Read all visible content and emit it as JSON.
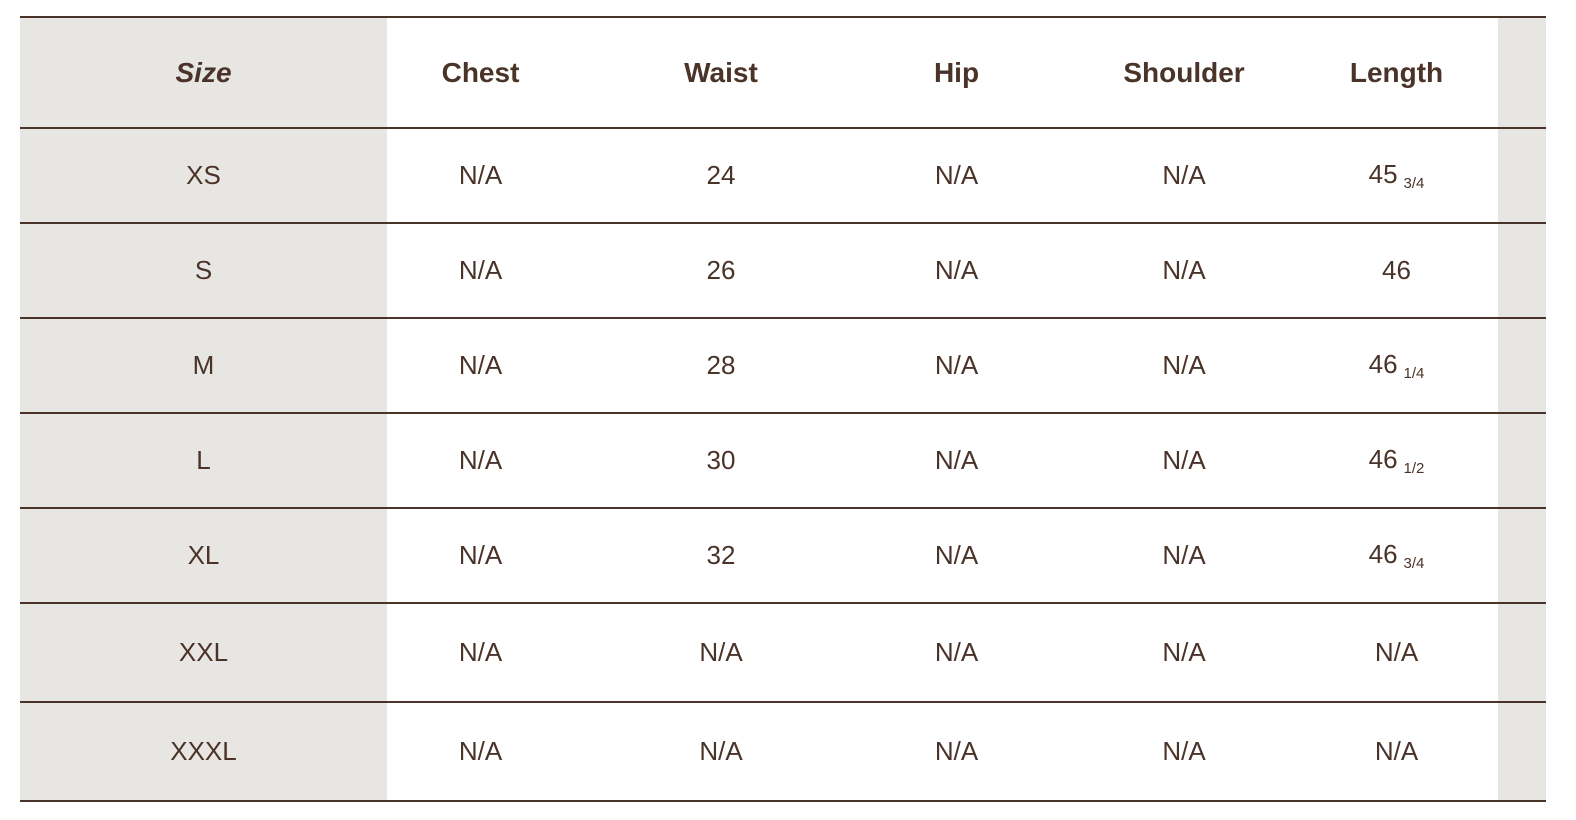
{
  "table": {
    "headers": [
      "Size",
      "Chest",
      "Waist",
      "Hip",
      "Shoulder",
      "Length"
    ],
    "rows": [
      {
        "size": "XS",
        "chest": "N/A",
        "waist": "24",
        "hip": "N/A",
        "shoulder": "N/A",
        "length": "45",
        "length_frac": "3/4"
      },
      {
        "size": "S",
        "chest": "N/A",
        "waist": "26",
        "hip": "N/A",
        "shoulder": "N/A",
        "length": "46",
        "length_frac": ""
      },
      {
        "size": "M",
        "chest": "N/A",
        "waist": "28",
        "hip": "N/A",
        "shoulder": "N/A",
        "length": "46",
        "length_frac": "1/4"
      },
      {
        "size": "L",
        "chest": "N/A",
        "waist": "30",
        "hip": "N/A",
        "shoulder": "N/A",
        "length": "46",
        "length_frac": "1/2"
      },
      {
        "size": "XL",
        "chest": "N/A",
        "waist": "32",
        "hip": "N/A",
        "shoulder": "N/A",
        "length": "46",
        "length_frac": "3/4"
      },
      {
        "size": "XXL",
        "chest": "N/A",
        "waist": "N/A",
        "hip": "N/A",
        "shoulder": "N/A",
        "length": "N/A",
        "length_frac": ""
      },
      {
        "size": "XXXL",
        "chest": "N/A",
        "waist": "N/A",
        "hip": "N/A",
        "shoulder": "N/A",
        "length": "N/A",
        "length_frac": ""
      }
    ]
  },
  "colors": {
    "text": "#4a3328",
    "shaded_column": "#e8e6e2",
    "rule": "#4a3328"
  }
}
